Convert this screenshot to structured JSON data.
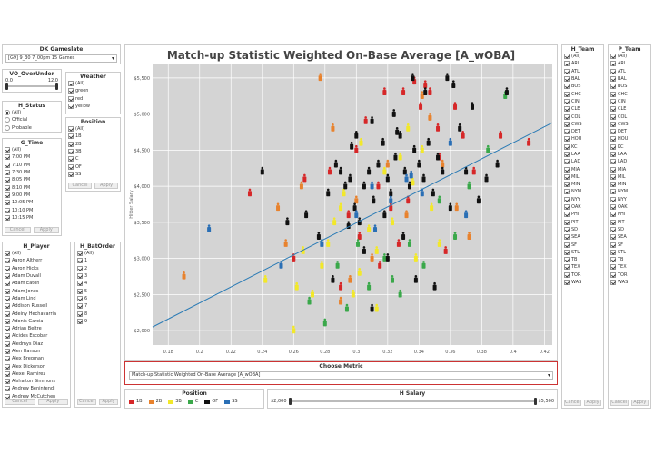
{
  "gameslate": {
    "title": "DK Gameslate",
    "value": "[G9] 9_30 7_00pm 15 Games"
  },
  "ou": {
    "title": "VO_OverUnder",
    "min": "0.0",
    "max": "12.0",
    "level": 0.08
  },
  "weather": {
    "title": "Weather",
    "items": [
      "(All)",
      "green",
      "red",
      "yellow"
    ]
  },
  "hstatus": {
    "title": "H_Status",
    "items": [
      "(All)",
      "Official",
      "Probable"
    ],
    "selected": 0
  },
  "position": {
    "title": "Position",
    "items": [
      "(All)",
      "1B",
      "2B",
      "3B",
      "C",
      "OF",
      "SS"
    ],
    "cancel": "Cancel",
    "apply": "Apply"
  },
  "gtime": {
    "title": "G_Time",
    "items": [
      "(All)",
      "7:00 PM",
      "7:10 PM",
      "7:30 PM",
      "8:05 PM",
      "8:10 PM",
      "9:00 PM",
      "10:05 PM",
      "10:10 PM",
      "10:15 PM"
    ],
    "cancel": "Cancel",
    "apply": "Apply"
  },
  "hplayer": {
    "title": "H_Player",
    "items": [
      "(All)",
      "Aaron Altherr",
      "Aaron Hicks",
      "Adam Duvall",
      "Adam Eaton",
      "Adam Jones",
      "Adam Lind",
      "Addison Russell",
      "Adeiny Hechavarria",
      "Adonis Garcia",
      "Adrian Beltre",
      "Alcides Escobar",
      "Aledmys Diaz",
      "Alen Hanson",
      "Alex Bregman",
      "Alex Dickerson",
      "Alexei Ramirez",
      "Alshalton Simmons",
      "Andrew Benintendi",
      "Andrew McCutchen"
    ],
    "cancel": "Cancel",
    "apply": "Apply"
  },
  "hbatorder": {
    "title": "H_BatOrder",
    "items": [
      "(All)",
      "1",
      "2",
      "3",
      "4",
      "5",
      "6",
      "7",
      "8",
      "9"
    ],
    "cancel": "Cancel",
    "apply": "Apply"
  },
  "chart_title": "Match-up Statistic Weighted On-Base Average [A_wOBA]",
  "choose_metric": {
    "title": "Choose Metric",
    "value": "Match-up Statistic Weighted On-Base Average [A_wOBA]"
  },
  "legend": {
    "title": "Position",
    "items": [
      {
        "label": "1B",
        "color": "#d62728"
      },
      {
        "label": "2B",
        "color": "#e8822d"
      },
      {
        "label": "3B",
        "color": "#f2e82a"
      },
      {
        "label": "C",
        "color": "#3aa84a"
      },
      {
        "label": "OF",
        "color": "#111111"
      },
      {
        "label": "SS",
        "color": "#2a6fb5"
      }
    ]
  },
  "hsalary": {
    "title": "H Salary",
    "min": "$2,000",
    "max": "$5,500"
  },
  "hteam": {
    "title": "H_Team",
    "items": [
      "(All)",
      "ARI",
      "ATL",
      "BAL",
      "BOS",
      "CHC",
      "CIN",
      "CLE",
      "COL",
      "CWS",
      "DET",
      "HOU",
      "KC",
      "LAA",
      "LAD",
      "MIA",
      "MIL",
      "MIN",
      "NYM",
      "NYY",
      "OAK",
      "PHI",
      "PIT",
      "SD",
      "SEA",
      "SF",
      "STL",
      "TB",
      "TEX",
      "TOR",
      "WAS"
    ],
    "cancel": "Cancel",
    "apply": "Apply"
  },
  "pteam": {
    "title": "P_Team",
    "items": [
      "(All)",
      "ARI",
      "ATL",
      "BAL",
      "BOS",
      "CHC",
      "CIN",
      "CLE",
      "COL",
      "CWS",
      "DET",
      "HOU",
      "KC",
      "LAA",
      "LAD",
      "MIA",
      "MIL",
      "MIN",
      "NYM",
      "NYY",
      "OAK",
      "PHI",
      "PIT",
      "SD",
      "SEA",
      "SF",
      "STL",
      "TB",
      "TEX",
      "TOR",
      "WAS"
    ],
    "cancel": "Cancel",
    "apply": "Apply"
  },
  "chart_data": {
    "type": "scatter",
    "title": "Match-up Statistic Weighted On-Base Average [A_wOBA]",
    "xlabel": "",
    "ylabel": "Hitter Salary",
    "xlim": [
      0.17,
      0.425
    ],
    "ylim": [
      1800,
      5700
    ],
    "xticks": [
      0.18,
      0.2,
      0.22,
      0.24,
      0.26,
      0.28,
      0.3,
      0.32,
      0.34,
      0.36,
      0.38,
      0.4,
      0.42
    ],
    "xtick_labels": [
      "0.18",
      "0.2",
      "0.22",
      "0.24",
      "0.26",
      "0.28",
      "0.3",
      "0.32",
      "0.34",
      "0.36",
      "0.38",
      "0.4",
      "0.42"
    ],
    "yticks": [
      2000,
      2500,
      3000,
      3500,
      4000,
      4500,
      5000,
      5500
    ],
    "ytick_labels": [
      "$2,000",
      "$2,500",
      "$3,000",
      "$3,500",
      "$4,000",
      "$4,500",
      "$5,000",
      "$5,500"
    ],
    "grid": true,
    "trend": [
      [
        0.17,
        2050
      ],
      [
        0.425,
        4880
      ]
    ],
    "series": [
      {
        "name": "1B",
        "points": [
          [
            0.232,
            3900
          ],
          [
            0.267,
            4100
          ],
          [
            0.283,
            4200
          ],
          [
            0.295,
            3600
          ],
          [
            0.302,
            3300
          ],
          [
            0.314,
            4000
          ],
          [
            0.322,
            3700
          ],
          [
            0.33,
            5300
          ],
          [
            0.337,
            5450
          ],
          [
            0.341,
            5100
          ],
          [
            0.344,
            5400
          ],
          [
            0.347,
            5300
          ],
          [
            0.352,
            4800
          ],
          [
            0.357,
            3100
          ],
          [
            0.363,
            5100
          ],
          [
            0.368,
            4700
          ],
          [
            0.375,
            4200
          ],
          [
            0.392,
            4700
          ],
          [
            0.41,
            4600
          ],
          [
            0.29,
            2600
          ],
          [
            0.315,
            2900
          ],
          [
            0.327,
            3200
          ],
          [
            0.353,
            4400
          ],
          [
            0.318,
            5300
          ],
          [
            0.3,
            4500
          ],
          [
            0.26,
            3000
          ],
          [
            0.306,
            4900
          ],
          [
            0.333,
            3800
          ]
        ]
      },
      {
        "name": "2B",
        "points": [
          [
            0.19,
            2750
          ],
          [
            0.25,
            3700
          ],
          [
            0.265,
            4000
          ],
          [
            0.277,
            5500
          ],
          [
            0.285,
            4800
          ],
          [
            0.3,
            3800
          ],
          [
            0.32,
            4300
          ],
          [
            0.332,
            3600
          ],
          [
            0.342,
            5250
          ],
          [
            0.355,
            4300
          ],
          [
            0.364,
            3700
          ],
          [
            0.31,
            3000
          ],
          [
            0.296,
            2700
          ],
          [
            0.255,
            3200
          ],
          [
            0.29,
            2400
          ],
          [
            0.347,
            4950
          ],
          [
            0.372,
            3300
          ]
        ]
      },
      {
        "name": "3B",
        "points": [
          [
            0.242,
            2700
          ],
          [
            0.26,
            2000
          ],
          [
            0.262,
            2600
          ],
          [
            0.272,
            2500
          ],
          [
            0.282,
            3200
          ],
          [
            0.286,
            3500
          ],
          [
            0.292,
            3900
          ],
          [
            0.298,
            2500
          ],
          [
            0.303,
            4600
          ],
          [
            0.308,
            3400
          ],
          [
            0.313,
            3100
          ],
          [
            0.318,
            4200
          ],
          [
            0.323,
            3500
          ],
          [
            0.328,
            4400
          ],
          [
            0.333,
            4800
          ],
          [
            0.338,
            3000
          ],
          [
            0.342,
            4500
          ],
          [
            0.348,
            3700
          ],
          [
            0.353,
            3200
          ],
          [
            0.278,
            2900
          ],
          [
            0.266,
            3100
          ],
          [
            0.313,
            2300
          ],
          [
            0.302,
            2800
          ],
          [
            0.336,
            4050
          ],
          [
            0.29,
            3700
          ]
        ]
      },
      {
        "name": "C",
        "points": [
          [
            0.27,
            2400
          ],
          [
            0.28,
            2100
          ],
          [
            0.288,
            2900
          ],
          [
            0.294,
            2300
          ],
          [
            0.308,
            2600
          ],
          [
            0.318,
            3000
          ],
          [
            0.323,
            2700
          ],
          [
            0.334,
            3200
          ],
          [
            0.343,
            2900
          ],
          [
            0.353,
            3800
          ],
          [
            0.363,
            3300
          ],
          [
            0.372,
            4000
          ],
          [
            0.384,
            4500
          ],
          [
            0.395,
            5250
          ],
          [
            0.301,
            3200
          ],
          [
            0.328,
            2500
          ]
        ]
      },
      {
        "name": "OF",
        "points": [
          [
            0.24,
            4200
          ],
          [
            0.256,
            3500
          ],
          [
            0.268,
            3600
          ],
          [
            0.276,
            3300
          ],
          [
            0.282,
            3900
          ],
          [
            0.287,
            4300
          ],
          [
            0.29,
            4200
          ],
          [
            0.293,
            4000
          ],
          [
            0.296,
            4100
          ],
          [
            0.299,
            3700
          ],
          [
            0.302,
            3500
          ],
          [
            0.305,
            4000
          ],
          [
            0.308,
            4200
          ],
          [
            0.311,
            3800
          ],
          [
            0.314,
            4300
          ],
          [
            0.317,
            4600
          ],
          [
            0.32,
            4100
          ],
          [
            0.322,
            3900
          ],
          [
            0.325,
            4400
          ],
          [
            0.328,
            4700
          ],
          [
            0.331,
            4200
          ],
          [
            0.334,
            4000
          ],
          [
            0.337,
            4500
          ],
          [
            0.34,
            4300
          ],
          [
            0.343,
            4100
          ],
          [
            0.346,
            4600
          ],
          [
            0.349,
            3900
          ],
          [
            0.352,
            4400
          ],
          [
            0.355,
            4200
          ],
          [
            0.358,
            5500
          ],
          [
            0.362,
            5400
          ],
          [
            0.366,
            4800
          ],
          [
            0.37,
            4200
          ],
          [
            0.374,
            5100
          ],
          [
            0.378,
            3800
          ],
          [
            0.383,
            4100
          ],
          [
            0.39,
            4300
          ],
          [
            0.396,
            5300
          ],
          [
            0.3,
            4700
          ],
          [
            0.31,
            4900
          ],
          [
            0.324,
            5000
          ],
          [
            0.336,
            5500
          ],
          [
            0.344,
            5300
          ],
          [
            0.318,
            3600
          ],
          [
            0.33,
            3300
          ],
          [
            0.305,
            3100
          ],
          [
            0.295,
            3450
          ],
          [
            0.285,
            2700
          ],
          [
            0.35,
            2600
          ],
          [
            0.36,
            3700
          ],
          [
            0.338,
            2700
          ],
          [
            0.32,
            3000
          ],
          [
            0.31,
            2300
          ],
          [
            0.297,
            4550
          ],
          [
            0.326,
            4750
          ]
        ]
      },
      {
        "name": "SS",
        "points": [
          [
            0.206,
            3400
          ],
          [
            0.252,
            2900
          ],
          [
            0.278,
            3200
          ],
          [
            0.312,
            3400
          ],
          [
            0.322,
            3800
          ],
          [
            0.332,
            4100
          ],
          [
            0.342,
            3900
          ],
          [
            0.36,
            4600
          ],
          [
            0.37,
            3600
          ],
          [
            0.31,
            4000
          ],
          [
            0.3,
            3600
          ],
          [
            0.335,
            4150
          ]
        ]
      }
    ]
  }
}
